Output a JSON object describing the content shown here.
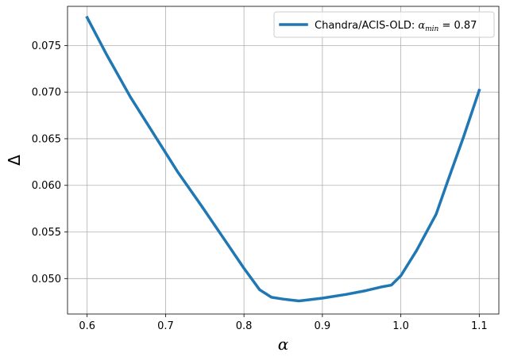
{
  "chart_data": {
    "type": "line",
    "title": "",
    "xlabel": "α",
    "ylabel": "Δ",
    "xlim": [
      0.575,
      1.125
    ],
    "ylim": [
      0.0462,
      0.0792
    ],
    "grid": true,
    "legend_position": "top-right",
    "x_ticks": [
      0.6,
      0.7,
      0.8,
      0.9,
      1.0,
      1.1
    ],
    "x_tick_labels": [
      "0.6",
      "0.7",
      "0.8",
      "0.9",
      "1.0",
      "1.1"
    ],
    "y_ticks": [
      0.05,
      0.055,
      0.06,
      0.065,
      0.07,
      0.075
    ],
    "y_tick_labels": [
      "0.050",
      "0.055",
      "0.060",
      "0.065",
      "0.070",
      "0.075"
    ],
    "series": [
      {
        "name": "Chandra/ACIS-OLD: α_min = 0.87",
        "legend_prefix": "Chandra/ACIS-OLD: ",
        "legend_alpha": "α",
        "legend_sub": "min",
        "legend_suffix": " = 0.87",
        "color": "#1f77b4",
        "x": [
          0.6,
          0.625,
          0.655,
          0.685,
          0.715,
          0.745,
          0.775,
          0.8,
          0.82,
          0.835,
          0.85,
          0.86,
          0.87,
          0.88,
          0.9,
          0.93,
          0.955,
          0.975,
          0.988,
          1.0,
          1.02,
          1.045,
          1.06,
          1.08,
          1.1
        ],
        "y": [
          0.078,
          0.074,
          0.0695,
          0.0655,
          0.0615,
          0.0579,
          0.0542,
          0.0511,
          0.0488,
          0.048,
          0.0478,
          0.0477,
          0.0476,
          0.0477,
          0.0479,
          0.0483,
          0.0487,
          0.0491,
          0.0493,
          0.0503,
          0.053,
          0.0569,
          0.0605,
          0.0652,
          0.0702
        ]
      }
    ]
  }
}
